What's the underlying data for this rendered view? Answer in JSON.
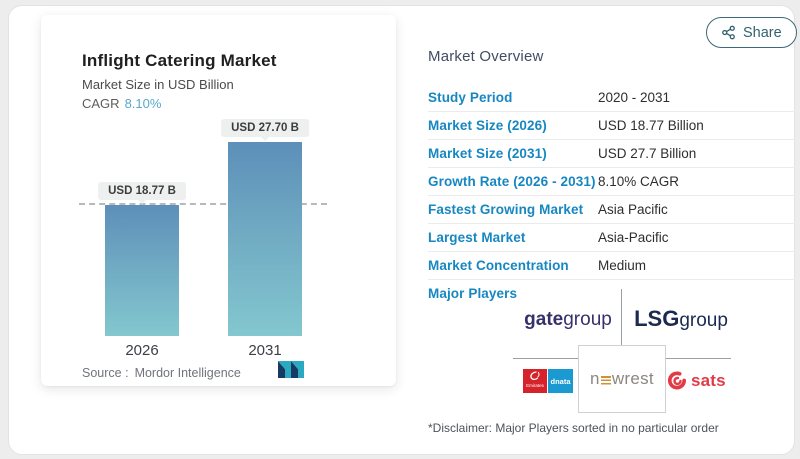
{
  "share": {
    "label": "Share"
  },
  "chart": {
    "title": "Inflight Catering Market",
    "subtitle": "Market Size in USD Billion",
    "cagr_label": "CAGR",
    "cagr_value": "8.10%",
    "bar_labels": [
      "USD 18.77 B",
      "USD 27.70 B"
    ],
    "x_labels": [
      "2026",
      "2031"
    ],
    "source_label": "Source :",
    "source_value": "Mordor Intelligence"
  },
  "chart_data": {
    "type": "bar",
    "categories": [
      "2026",
      "2031"
    ],
    "values": [
      18.77,
      27.7
    ],
    "title": "Inflight Catering Market",
    "ylabel": "Market Size in USD Billion",
    "data_labels": [
      "USD 18.77 B",
      "USD 27.70 B"
    ],
    "reference_line": 18.77,
    "ylim": [
      0,
      45.8
    ],
    "grid": false,
    "legend": false,
    "bar_color_top": "#5d8fb9",
    "bar_color_bottom": "#83c7cf"
  },
  "overview": {
    "heading": "Market Overview",
    "rows": [
      {
        "label": "Study Period",
        "value": "2020 - 2031"
      },
      {
        "label": "Market Size (2026)",
        "value": "USD 18.77 Billion"
      },
      {
        "label": "Market Size (2031)",
        "value": "USD 27.7 Billion"
      },
      {
        "label": "Growth Rate (2026 - 2031)",
        "value": "8.10% CAGR"
      },
      {
        "label": "Fastest Growing Market",
        "value": "Asia Pacific"
      },
      {
        "label": "Largest Market",
        "value": "Asia-Pacific"
      },
      {
        "label": "Market Concentration",
        "value": "Medium"
      },
      {
        "label": "Major Players",
        "value": ""
      }
    ],
    "major_players": {
      "gategroup_bold": "gate",
      "gategroup_light": "group",
      "lsg_bold": "LSG",
      "lsg_light": "group",
      "emirates": "Emirates",
      "dnata": "dnata",
      "newrest_n": "n",
      "newrest_rest": "wrest",
      "sats": "sats"
    },
    "disclaimer": "*Disclaimer: Major Players sorted in no particular order"
  },
  "colors": {
    "accent_blue": "#1787c1",
    "cagr_blue": "#58a9cc",
    "share_teal": "#33606f",
    "pill_bg": "#edf0ef",
    "emirates_red": "#d6232b",
    "dnata_blue": "#1b9ad2",
    "sats_red": "#e23b46",
    "gategroup_indigo": "#37316b",
    "lsg_navy": "#1b2a50",
    "newrest_orange": "#d28f35"
  }
}
